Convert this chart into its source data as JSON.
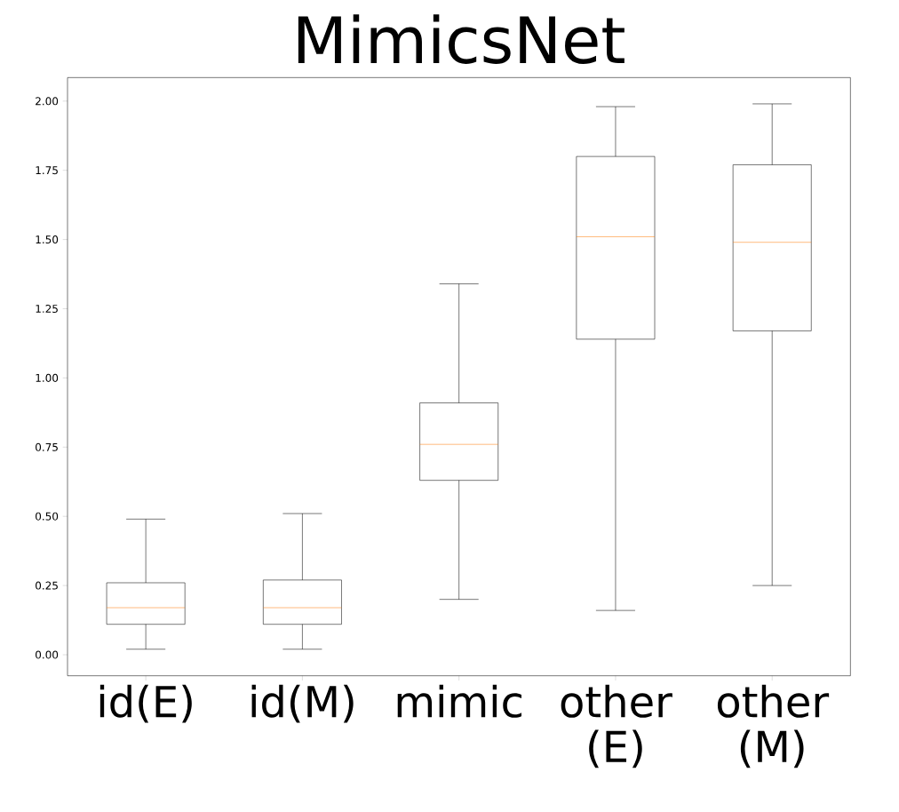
{
  "chart_data": {
    "type": "box",
    "title": "MimicsNet",
    "categories": [
      "id(E)",
      "id(M)",
      "mimic",
      "other (E)",
      "other (M)"
    ],
    "color": "#000000",
    "boxes": [
      {
        "low": 0.02,
        "q1": 0.11,
        "median": 0.17,
        "q3": 0.26,
        "high": 0.49
      },
      {
        "low": 0.02,
        "q1": 0.11,
        "median": 0.17,
        "q3": 0.27,
        "high": 0.51
      },
      {
        "low": 0.2,
        "q1": 0.63,
        "median": 0.76,
        "q3": 0.91,
        "high": 1.34
      },
      {
        "low": 0.16,
        "q1": 1.14,
        "median": 1.51,
        "q3": 1.8,
        "high": 1.98
      },
      {
        "low": 0.25,
        "q1": 1.17,
        "median": 1.49,
        "q3": 1.77,
        "high": 1.99
      }
    ],
    "ylim": [
      -0.076,
      2.085
    ],
    "yticks": [
      {
        "value": 0,
        "label": "0.00"
      },
      {
        "value": 0.25,
        "label": "0.25"
      },
      {
        "value": 0.5,
        "label": "0.50"
      },
      {
        "value": 0.75,
        "label": "0.75"
      },
      {
        "value": 1,
        "label": "1.00"
      },
      {
        "value": 1.25,
        "label": "1.25"
      },
      {
        "value": 1.5,
        "label": "1.50"
      },
      {
        "value": 1.75,
        "label": "1.75"
      },
      {
        "value": 2,
        "label": "2.00"
      }
    ]
  }
}
